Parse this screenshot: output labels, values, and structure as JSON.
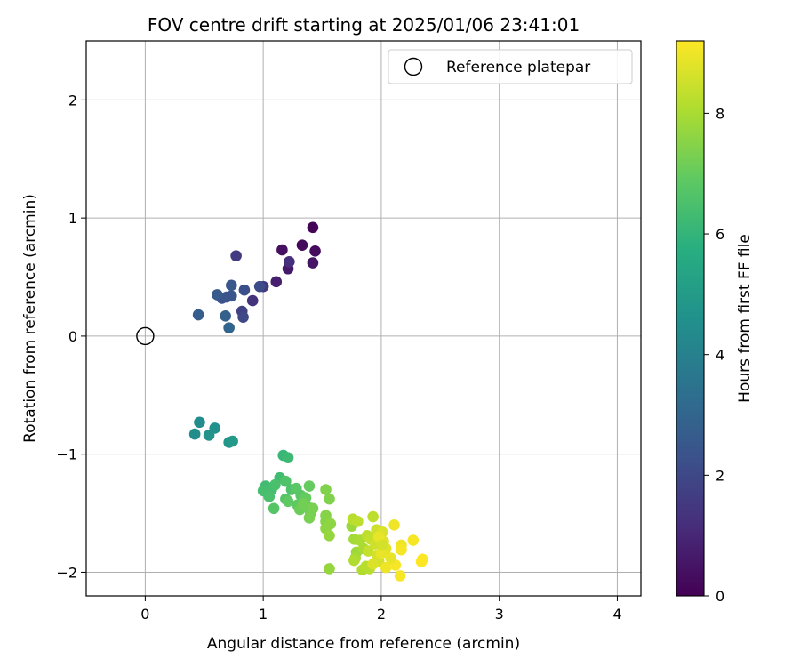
{
  "chart_data": {
    "type": "scatter",
    "title": "FOV centre drift starting at 2025/01/06 23:41:01",
    "xlabel": "Angular distance from reference (arcmin)",
    "ylabel": "Rotation from reference (arcmin)",
    "xlim": [
      -0.5,
      4.2
    ],
    "ylim": [
      -2.2,
      2.5
    ],
    "xticks": [
      0,
      1,
      2,
      3,
      4
    ],
    "xtick_labels": [
      "0",
      "1",
      "2",
      "3",
      "4"
    ],
    "yticks": [
      -2,
      -1,
      0,
      1,
      2
    ],
    "ytick_labels": [
      "−2",
      "−1",
      "0",
      "1",
      "2"
    ],
    "grid": true,
    "legend": {
      "placement": "top-right",
      "label": "Reference platepar"
    },
    "reference_point": {
      "x": 0,
      "y": 0
    },
    "colorbar": {
      "label": "Hours from first FF file",
      "range": [
        0,
        9.2
      ],
      "ticks": [
        0,
        2,
        4,
        6,
        8
      ],
      "tick_labels": [
        "0",
        "2",
        "4",
        "6",
        "8"
      ],
      "colormap": "viridis"
    },
    "points": [
      {
        "x": 1.42,
        "y": 0.92,
        "h": 0.1
      },
      {
        "x": 1.33,
        "y": 0.77,
        "h": 0.2
      },
      {
        "x": 1.44,
        "y": 0.72,
        "h": 0.3
      },
      {
        "x": 1.16,
        "y": 0.73,
        "h": 0.4
      },
      {
        "x": 1.42,
        "y": 0.62,
        "h": 0.5
      },
      {
        "x": 1.21,
        "y": 0.57,
        "h": 0.6
      },
      {
        "x": 1.11,
        "y": 0.46,
        "h": 0.8
      },
      {
        "x": 1.22,
        "y": 0.63,
        "h": 1.2
      },
      {
        "x": 0.91,
        "y": 0.3,
        "h": 1.3
      },
      {
        "x": 1.0,
        "y": 0.42,
        "h": 1.5
      },
      {
        "x": 0.77,
        "y": 0.68,
        "h": 1.6
      },
      {
        "x": 0.82,
        "y": 0.21,
        "h": 1.8
      },
      {
        "x": 0.83,
        "y": 0.16,
        "h": 2.0
      },
      {
        "x": 0.97,
        "y": 0.42,
        "h": 2.1
      },
      {
        "x": 0.84,
        "y": 0.39,
        "h": 2.2
      },
      {
        "x": 0.65,
        "y": 0.32,
        "h": 2.3
      },
      {
        "x": 0.69,
        "y": 0.33,
        "h": 2.4
      },
      {
        "x": 0.73,
        "y": 0.34,
        "h": 2.4
      },
      {
        "x": 0.73,
        "y": 0.43,
        "h": 2.5
      },
      {
        "x": 0.61,
        "y": 0.35,
        "h": 2.6
      },
      {
        "x": 0.45,
        "y": 0.18,
        "h": 2.7
      },
      {
        "x": 0.68,
        "y": 0.17,
        "h": 2.8
      },
      {
        "x": 0.71,
        "y": 0.07,
        "h": 3.0
      },
      {
        "x": 0.46,
        "y": -0.73,
        "h": 4.4
      },
      {
        "x": 0.42,
        "y": -0.83,
        "h": 4.5
      },
      {
        "x": 0.59,
        "y": -0.78,
        "h": 4.6
      },
      {
        "x": 0.54,
        "y": -0.84,
        "h": 4.7
      },
      {
        "x": 0.71,
        "y": -0.9,
        "h": 4.8
      },
      {
        "x": 0.74,
        "y": -0.89,
        "h": 4.9
      },
      {
        "x": 1.17,
        "y": -1.01,
        "h": 6.1
      },
      {
        "x": 1.21,
        "y": -1.03,
        "h": 6.2
      },
      {
        "x": 1.14,
        "y": -1.2,
        "h": 6.3
      },
      {
        "x": 1.02,
        "y": -1.27,
        "h": 6.3
      },
      {
        "x": 1.0,
        "y": -1.31,
        "h": 6.4
      },
      {
        "x": 1.07,
        "y": -1.3,
        "h": 6.4
      },
      {
        "x": 1.1,
        "y": -1.26,
        "h": 6.5
      },
      {
        "x": 1.05,
        "y": -1.36,
        "h": 6.5
      },
      {
        "x": 1.19,
        "y": -1.23,
        "h": 6.6
      },
      {
        "x": 1.24,
        "y": -1.3,
        "h": 6.6
      },
      {
        "x": 1.19,
        "y": -1.38,
        "h": 6.7
      },
      {
        "x": 1.09,
        "y": -1.46,
        "h": 6.7
      },
      {
        "x": 1.28,
        "y": -1.29,
        "h": 6.8
      },
      {
        "x": 1.32,
        "y": -1.35,
        "h": 6.8
      },
      {
        "x": 1.21,
        "y": -1.4,
        "h": 6.9
      },
      {
        "x": 1.29,
        "y": -1.43,
        "h": 6.9
      },
      {
        "x": 1.36,
        "y": -1.37,
        "h": 7.0
      },
      {
        "x": 1.39,
        "y": -1.27,
        "h": 7.0
      },
      {
        "x": 1.31,
        "y": -1.47,
        "h": 7.1
      },
      {
        "x": 1.38,
        "y": -1.45,
        "h": 7.1
      },
      {
        "x": 1.4,
        "y": -1.5,
        "h": 7.2
      },
      {
        "x": 1.34,
        "y": -1.42,
        "h": 7.2
      },
      {
        "x": 1.42,
        "y": -1.46,
        "h": 7.3
      },
      {
        "x": 1.39,
        "y": -1.54,
        "h": 7.3
      },
      {
        "x": 1.53,
        "y": -1.3,
        "h": 7.4
      },
      {
        "x": 1.56,
        "y": -1.38,
        "h": 7.4
      },
      {
        "x": 1.53,
        "y": -1.52,
        "h": 7.5
      },
      {
        "x": 1.53,
        "y": -1.57,
        "h": 7.5
      },
      {
        "x": 1.57,
        "y": -1.59,
        "h": 7.6
      },
      {
        "x": 1.53,
        "y": -1.63,
        "h": 7.6
      },
      {
        "x": 1.56,
        "y": -1.69,
        "h": 7.7
      },
      {
        "x": 1.56,
        "y": -1.97,
        "h": 7.7
      },
      {
        "x": 1.75,
        "y": -1.61,
        "h": 7.8
      },
      {
        "x": 1.79,
        "y": -1.83,
        "h": 7.8
      },
      {
        "x": 1.78,
        "y": -1.88,
        "h": 7.9
      },
      {
        "x": 1.77,
        "y": -1.72,
        "h": 7.9
      },
      {
        "x": 1.82,
        "y": -1.73,
        "h": 8.0
      },
      {
        "x": 1.85,
        "y": -1.8,
        "h": 8.0
      },
      {
        "x": 1.77,
        "y": -1.9,
        "h": 8.1
      },
      {
        "x": 1.84,
        "y": -1.98,
        "h": 8.1
      },
      {
        "x": 1.87,
        "y": -1.95,
        "h": 8.2
      },
      {
        "x": 1.9,
        "y": -1.97,
        "h": 8.2
      },
      {
        "x": 1.93,
        "y": -1.53,
        "h": 8.3
      },
      {
        "x": 1.88,
        "y": -1.69,
        "h": 8.3
      },
      {
        "x": 1.91,
        "y": -1.72,
        "h": 8.4
      },
      {
        "x": 1.89,
        "y": -1.82,
        "h": 8.4
      },
      {
        "x": 1.95,
        "y": -1.76,
        "h": 8.5
      },
      {
        "x": 1.96,
        "y": -1.64,
        "h": 8.5
      },
      {
        "x": 1.97,
        "y": -1.86,
        "h": 8.6
      },
      {
        "x": 1.98,
        "y": -1.91,
        "h": 8.6
      },
      {
        "x": 1.93,
        "y": -1.93,
        "h": 8.7
      },
      {
        "x": 2.01,
        "y": -1.66,
        "h": 8.7
      },
      {
        "x": 2.02,
        "y": -1.74,
        "h": 8.8
      },
      {
        "x": 2.04,
        "y": -1.8,
        "h": 8.8
      },
      {
        "x": 1.98,
        "y": -1.7,
        "h": 8.9
      },
      {
        "x": 2.0,
        "y": -1.84,
        "h": 8.9
      },
      {
        "x": 2.04,
        "y": -1.96,
        "h": 9.0
      },
      {
        "x": 2.11,
        "y": -1.6,
        "h": 9.0
      },
      {
        "x": 2.17,
        "y": -1.77,
        "h": 9.0
      },
      {
        "x": 2.17,
        "y": -1.81,
        "h": 9.1
      },
      {
        "x": 2.12,
        "y": -1.94,
        "h": 9.1
      },
      {
        "x": 2.16,
        "y": -2.03,
        "h": 9.1
      },
      {
        "x": 2.27,
        "y": -1.73,
        "h": 9.1
      },
      {
        "x": 2.35,
        "y": -1.89,
        "h": 9.2
      },
      {
        "x": 2.34,
        "y": -1.91,
        "h": 9.2
      },
      {
        "x": 1.76,
        "y": -1.55,
        "h": 8.2
      },
      {
        "x": 1.8,
        "y": -1.57,
        "h": 8.3
      },
      {
        "x": 2.08,
        "y": -1.88,
        "h": 8.9
      },
      {
        "x": 2.01,
        "y": -1.77,
        "h": 8.6
      }
    ]
  }
}
